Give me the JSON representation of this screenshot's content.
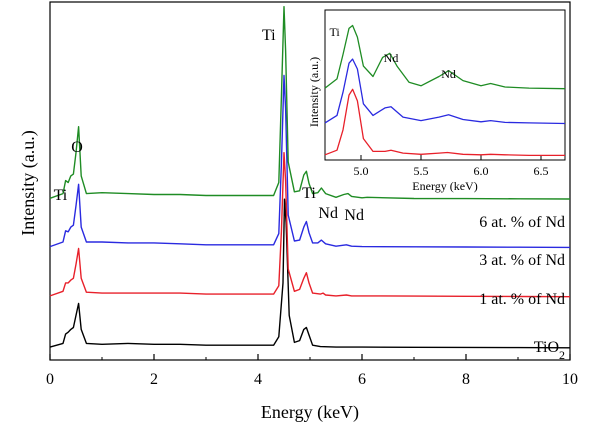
{
  "chart_data": [
    {
      "type": "line",
      "xlabel": "Energy (keV)",
      "ylabel": "Intensity (a.u.)",
      "xlim": [
        0,
        10
      ],
      "xticks": [
        "0",
        "2",
        "4",
        "6",
        "8",
        "10"
      ],
      "series": [
        {
          "name": "TiO",
          "name_sub": "2",
          "color": "#000000",
          "offset": 0,
          "x": [
            0,
            0.25,
            0.3,
            0.35,
            0.4,
            0.45,
            0.5,
            0.55,
            0.6,
            0.7,
            1.0,
            1.5,
            2.0,
            2.5,
            3.0,
            3.5,
            4.0,
            4.3,
            4.4,
            4.48,
            4.51,
            4.54,
            4.6,
            4.7,
            4.8,
            4.88,
            4.93,
            4.98,
            5.05,
            5.2,
            5.5,
            6.0,
            7.0,
            8.0,
            9.0,
            10.0
          ],
          "y": [
            0.01,
            0.05,
            0.15,
            0.17,
            0.2,
            0.22,
            0.35,
            0.48,
            0.2,
            0.05,
            0.04,
            0.05,
            0.04,
            0.04,
            0.03,
            0.03,
            0.03,
            0.03,
            0.12,
            0.7,
            1.6,
            1.35,
            0.35,
            0.06,
            0.08,
            0.2,
            0.22,
            0.14,
            0.03,
            0.015,
            0.01,
            0.01,
            0.008,
            0.006,
            0.004,
            0.002
          ]
        },
        {
          "name": "1 at. % of Nd",
          "color": "#e8202a",
          "offset": 0.55,
          "x": [
            0,
            0.25,
            0.3,
            0.35,
            0.4,
            0.45,
            0.5,
            0.55,
            0.6,
            0.7,
            1.0,
            1.5,
            2.0,
            2.5,
            3.0,
            3.5,
            4.0,
            4.3,
            4.4,
            4.45,
            4.5,
            4.53,
            4.58,
            4.7,
            4.8,
            4.88,
            4.93,
            4.98,
            5.05,
            5.2,
            5.25,
            5.3,
            5.5,
            5.7,
            5.8,
            6.0,
            7.0,
            8.0,
            9.0,
            10.0
          ],
          "y": [
            0.01,
            0.06,
            0.15,
            0.15,
            0.18,
            0.2,
            0.35,
            0.52,
            0.2,
            0.05,
            0.04,
            0.04,
            0.04,
            0.04,
            0.03,
            0.03,
            0.03,
            0.03,
            0.12,
            0.7,
            1.55,
            1.25,
            0.3,
            0.06,
            0.08,
            0.2,
            0.26,
            0.15,
            0.04,
            0.03,
            0.04,
            0.02,
            0.01,
            0.02,
            0.01,
            0.01,
            0.008,
            0.006,
            0.004,
            0.002
          ]
        },
        {
          "name": "3 at. % of Nd",
          "color": "#2a2ae0",
          "offset": 1.08,
          "x": [
            0,
            0.25,
            0.3,
            0.35,
            0.4,
            0.45,
            0.5,
            0.55,
            0.6,
            0.7,
            1.0,
            1.5,
            2.0,
            2.5,
            3.0,
            3.5,
            4.0,
            4.3,
            4.4,
            4.45,
            4.5,
            4.53,
            4.58,
            4.7,
            4.8,
            4.88,
            4.93,
            4.98,
            5.05,
            5.15,
            5.22,
            5.3,
            5.5,
            5.7,
            5.8,
            6.0,
            7.0,
            8.0,
            9.0,
            10.0
          ],
          "y": [
            0.01,
            0.06,
            0.18,
            0.17,
            0.22,
            0.24,
            0.45,
            0.68,
            0.22,
            0.06,
            0.06,
            0.05,
            0.05,
            0.04,
            0.03,
            0.03,
            0.03,
            0.03,
            0.15,
            0.9,
            1.85,
            1.5,
            0.35,
            0.07,
            0.08,
            0.22,
            0.28,
            0.16,
            0.05,
            0.05,
            0.08,
            0.04,
            0.015,
            0.03,
            0.015,
            0.01,
            0.008,
            0.006,
            0.004,
            0.002
          ]
        },
        {
          "name": "6 at. % of Nd",
          "color": "#1f8c24",
          "offset": 1.6,
          "x": [
            0,
            0.25,
            0.3,
            0.35,
            0.4,
            0.45,
            0.5,
            0.55,
            0.6,
            0.7,
            1.0,
            1.5,
            2.0,
            2.5,
            3.0,
            3.5,
            4.0,
            4.3,
            4.4,
            4.45,
            4.5,
            4.53,
            4.58,
            4.7,
            4.8,
            4.88,
            4.93,
            4.98,
            5.05,
            5.15,
            5.22,
            5.3,
            5.5,
            5.65,
            5.73,
            5.8,
            6.0,
            6.1,
            7.0,
            8.0,
            9.0,
            10.0
          ],
          "y": [
            0.01,
            0.06,
            0.2,
            0.18,
            0.25,
            0.27,
            0.5,
            0.78,
            0.25,
            0.06,
            0.07,
            0.06,
            0.05,
            0.05,
            0.04,
            0.04,
            0.04,
            0.04,
            0.18,
            1.1,
            2.07,
            1.6,
            0.4,
            0.08,
            0.09,
            0.26,
            0.3,
            0.17,
            0.06,
            0.07,
            0.12,
            0.06,
            0.02,
            0.05,
            0.06,
            0.03,
            0.015,
            0.02,
            0.008,
            0.006,
            0.004,
            0.002
          ]
        }
      ],
      "annotations": [
        {
          "text": "O",
          "x": 0.52
        },
        {
          "text": "Ti",
          "x": 0.2
        },
        {
          "text": "Ti",
          "x": 4.4
        },
        {
          "text": "Ti",
          "x": 4.98
        },
        {
          "text": "Nd",
          "x": 5.35
        },
        {
          "text": "Nd",
          "x": 5.85
        }
      ]
    },
    {
      "type": "line",
      "subplot": "inset",
      "xlabel": "Energy (keV)",
      "ylabel": "Intensity (a.u.)",
      "xlim": [
        4.7,
        6.7
      ],
      "xticks": [
        "5.0",
        "5.5",
        "6.0",
        "6.5"
      ],
      "series": [
        {
          "name": "1 at. % of Nd",
          "color": "#e8202a",
          "offset": 0,
          "x": [
            4.7,
            4.8,
            4.85,
            4.9,
            4.93,
            4.97,
            5.02,
            5.1,
            5.2,
            5.25,
            5.35,
            5.5,
            5.65,
            5.72,
            5.85,
            6.0,
            6.08,
            6.2,
            6.4,
            6.7
          ],
          "y": [
            0.02,
            0.1,
            0.45,
            1.05,
            1.15,
            0.95,
            0.3,
            0.08,
            0.08,
            0.1,
            0.05,
            0.03,
            0.05,
            0.06,
            0.03,
            0.02,
            0.03,
            0.02,
            0.01,
            0.01
          ]
        },
        {
          "name": "3 at. % of Nd",
          "color": "#2a2ae0",
          "offset": 0.55,
          "x": [
            4.7,
            4.8,
            4.85,
            4.9,
            4.93,
            4.97,
            5.02,
            5.1,
            5.2,
            5.25,
            5.35,
            5.5,
            5.65,
            5.73,
            5.85,
            6.0,
            6.08,
            6.2,
            6.4,
            6.7
          ],
          "y": [
            0.02,
            0.15,
            0.55,
            1.05,
            1.12,
            0.95,
            0.35,
            0.15,
            0.28,
            0.3,
            0.12,
            0.06,
            0.12,
            0.16,
            0.08,
            0.04,
            0.06,
            0.03,
            0.02,
            0.01
          ]
        },
        {
          "name": "6 at. % of Nd",
          "color": "#1f8c24",
          "offset": 1.15,
          "x": [
            4.7,
            4.8,
            4.85,
            4.9,
            4.93,
            4.97,
            5.02,
            5.1,
            5.18,
            5.24,
            5.3,
            5.4,
            5.5,
            5.65,
            5.73,
            5.85,
            6.0,
            6.08,
            6.2,
            6.4,
            6.7
          ],
          "y": [
            0.02,
            0.18,
            0.6,
            1.05,
            1.1,
            0.9,
            0.4,
            0.22,
            0.55,
            0.62,
            0.4,
            0.12,
            0.06,
            0.22,
            0.32,
            0.15,
            0.06,
            0.1,
            0.04,
            0.02,
            0.01
          ]
        }
      ],
      "annotations": [
        {
          "text": "Ti",
          "x": 4.78
        },
        {
          "text": "Nd",
          "x": 5.25
        },
        {
          "text": "Nd",
          "x": 5.73
        }
      ]
    }
  ]
}
